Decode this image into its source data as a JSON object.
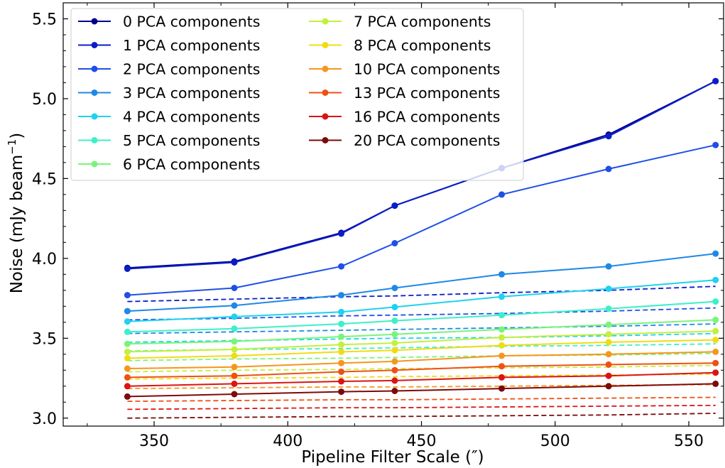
{
  "chart_data": {
    "type": "line",
    "title": "",
    "xlabel": "Pipeline Filter Scale (″)",
    "ylabel_main": "Noise (mJy beam",
    "ylabel_sup": "−1",
    "ylabel_close": ")",
    "xlim": [
      316,
      563
    ],
    "ylim": [
      2.95,
      5.6
    ],
    "xticks": [
      350,
      400,
      450,
      500,
      550
    ],
    "yticks": [
      3.0,
      3.5,
      4.0,
      4.5,
      5.0,
      5.5
    ],
    "xtick_labels": [
      "350",
      "400",
      "450",
      "500",
      "550"
    ],
    "ytick_labels": [
      "3.0",
      "3.5",
      "4.0",
      "4.5",
      "5.0",
      "5.5"
    ],
    "legend_position": "upper-left",
    "x": [
      340,
      380,
      420,
      440,
      480,
      520,
      560
    ],
    "series": [
      {
        "name": "0 PCA components",
        "color": "#00008b",
        "values": [
          3.94,
          3.98,
          4.16,
          4.33,
          4.565,
          4.775,
          5.11
        ],
        "dashed_values": null
      },
      {
        "name": "1 PCA components",
        "color": "#0a1ec8",
        "values": [
          3.935,
          3.975,
          4.155,
          4.33,
          4.565,
          4.765,
          5.11
        ],
        "dashed_values": [
          3.73,
          3.745,
          3.76,
          3.765,
          3.785,
          3.8,
          3.825
        ]
      },
      {
        "name": "2 PCA components",
        "color": "#1e50e6",
        "values": [
          3.77,
          3.815,
          3.95,
          4.095,
          4.4,
          4.56,
          4.71
        ],
        "dashed_values": [
          3.615,
          3.625,
          3.64,
          3.645,
          3.655,
          3.67,
          3.69
        ]
      },
      {
        "name": "3 PCA components",
        "color": "#1e88e6",
        "values": [
          3.67,
          3.705,
          3.77,
          3.815,
          3.9,
          3.95,
          4.03
        ],
        "dashed_values": [
          3.53,
          3.54,
          3.55,
          3.555,
          3.565,
          3.575,
          3.59
        ]
      },
      {
        "name": "4 PCA components",
        "color": "#1ed2f0",
        "values": [
          3.605,
          3.635,
          3.665,
          3.695,
          3.76,
          3.81,
          3.865
        ],
        "dashed_values": [
          3.475,
          3.485,
          3.495,
          3.5,
          3.505,
          3.515,
          3.53
        ]
      },
      {
        "name": "5 PCA components",
        "color": "#3cf0c8",
        "values": [
          3.54,
          3.56,
          3.59,
          3.61,
          3.645,
          3.685,
          3.73
        ],
        "dashed_values": [
          3.42,
          3.43,
          3.435,
          3.44,
          3.45,
          3.455,
          3.465
        ]
      },
      {
        "name": "6 PCA components",
        "color": "#78f578",
        "values": [
          3.465,
          3.48,
          3.51,
          3.525,
          3.555,
          3.585,
          3.615
        ],
        "dashed_values": [
          3.36,
          3.37,
          3.375,
          3.38,
          3.39,
          3.395,
          3.405
        ]
      },
      {
        "name": "7 PCA components",
        "color": "#c3f03c",
        "values": [
          3.415,
          3.43,
          3.46,
          3.47,
          3.505,
          3.525,
          3.545
        ],
        "dashed_values": [
          3.29,
          3.3,
          3.305,
          3.31,
          3.315,
          3.32,
          3.33
        ]
      },
      {
        "name": "8 PCA components",
        "color": "#f0dc14",
        "values": [
          3.375,
          3.39,
          3.415,
          3.425,
          3.455,
          3.475,
          3.49
        ],
        "dashed_values": [
          3.245,
          3.25,
          3.255,
          3.26,
          3.265,
          3.27,
          3.275
        ]
      },
      {
        "name": "10 PCA components",
        "color": "#f5961e",
        "values": [
          3.31,
          3.32,
          3.345,
          3.355,
          3.39,
          3.4,
          3.415
        ],
        "dashed_values": [
          3.185,
          3.19,
          3.195,
          3.195,
          3.2,
          3.205,
          3.21
        ]
      },
      {
        "name": "13 PCA components",
        "color": "#f05014",
        "values": [
          3.255,
          3.265,
          3.29,
          3.3,
          3.325,
          3.335,
          3.345
        ],
        "dashed_values": [
          3.105,
          3.11,
          3.115,
          3.115,
          3.12,
          3.125,
          3.13
        ]
      },
      {
        "name": "16 PCA components",
        "color": "#dc1414",
        "values": [
          3.2,
          3.215,
          3.23,
          3.235,
          3.255,
          3.265,
          3.285
        ],
        "dashed_values": [
          3.055,
          3.06,
          3.065,
          3.065,
          3.07,
          3.075,
          3.08
        ]
      },
      {
        "name": "20 PCA components",
        "color": "#7d0a0a",
        "values": [
          3.135,
          3.15,
          3.165,
          3.17,
          3.185,
          3.2,
          3.215
        ],
        "dashed_values": [
          3.0,
          3.005,
          3.01,
          3.01,
          3.015,
          3.02,
          3.03
        ]
      }
    ]
  }
}
